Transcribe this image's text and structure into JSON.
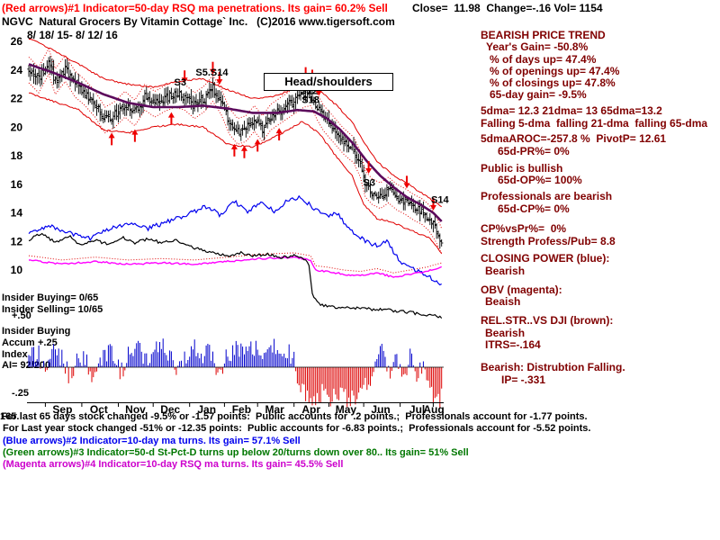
{
  "header": {
    "indicator1": "(Red arrows)#1 Indicator=50-day RSQ ma penetrations. Its gain= 60.2% Sell",
    "quote": "Close=  11.98  Change=-.16 Vol= 1154",
    "title": "NGVC  Natural Grocers By Vitamin Cottage` Inc.   (C)2016 www.tigersoft.com",
    "date_range": "8/ 18/ 15- 8/ 12/ 16"
  },
  "chart_annotations": {
    "head_shoulders": "Head/shoulders"
  },
  "right_panel": {
    "lines": [
      "BEARISH PRICE TREND",
      "Year's Gain= -50.8%",
      "% of days up= 47.4%",
      "% of openings up= 47.4%",
      "% of closings up= 47.8%",
      "65-day gain= -9.5%",
      "5dma= 12.3 21dma= 13 65dma=13.2",
      "Falling 5-dma  falling 21-dma  falling 65-dma",
      "5dmaAROC=-257.8 %  PivotP= 12.61",
      "65d-PR%= 0%",
      "Public is bullish",
      "65d-OP%= 100%",
      "Professionals are bearish",
      "65d-CP%= 0%",
      "CP%vsPr%=  0%",
      "Strength Profess/Pub= 8.8",
      "CLOSING POWER (blue):",
      "Bearish",
      "OBV (magenta):",
      "Beaish",
      "REL.STR..VS DJI (brown):",
      "Bearish",
      "ITRS=-.164",
      "Bearish: Distrubtion Falling.",
      "IP= -.331"
    ]
  },
  "insider": {
    "buying": "Insider Buying= 0/65",
    "selling": "Insider Selling= 10/65",
    "scale_plus_50": "+.50",
    "buying_label2": "Insider Buying",
    "accum_label": "Accum",
    "scale_plus_25": "+.25",
    "index_label": "Index",
    "ai_value": "AI= 92/200",
    "scale_minus_25": "-.25"
  },
  "footer": {
    "artifact": "165.",
    "line1": "For last 65 days stock changed -9.5% or -1.57 points:  Public accounts for  .2 points.;  Professionals account for -1.77 points.",
    "line2": "For Last year stock changed -51% or -12.35 points:  Public accounts for -6.83 points.;  Professionals account for -5.52 points.",
    "line3": "(Blue arrows)#2 Indicator=10-day ma turns. Its gain= 57.1% Sell",
    "line4": "(Green arrows)#3 Indicator=50-d St-Pct-D turns up below 20/turns down over 80.. Its gain= 51% Sell",
    "line5": "(Magenta arrows)#4 Indicator=10-day RSQ ma turns. Its gain= 45.5% Sell"
  },
  "chart_data": {
    "type": "candlestick",
    "title": "NGVC Natural Grocers By Vitamin Cottage Inc.",
    "period": "8/18/15 - 8/12/16",
    "quote": {
      "close": 11.98,
      "change": -0.16,
      "volume": 1154
    },
    "days": 250,
    "months": [
      "Sep",
      "Oct",
      "Nov",
      "Dec",
      "Jan",
      "Feb",
      "Mar",
      "Apr",
      "May",
      "Jun",
      "Jul",
      "Aug"
    ],
    "month_start_days": [
      10,
      32,
      54,
      75,
      97,
      118,
      138,
      160,
      181,
      202,
      224,
      244
    ],
    "price_ticks": [
      26,
      24,
      22,
      20,
      18,
      16,
      14,
      12,
      10
    ],
    "price_axis_range": [
      10,
      26
    ],
    "accum_ticks": [
      0.5,
      0.25,
      -0.25
    ],
    "accum_axis_range": [
      -0.5,
      0.5
    ],
    "price_anchors": [
      [
        0,
        24.0
      ],
      [
        6,
        23.3
      ],
      [
        12,
        24.6
      ],
      [
        16,
        23.2
      ],
      [
        22,
        24.1
      ],
      [
        28,
        23.0
      ],
      [
        34,
        22.4
      ],
      [
        40,
        21.6
      ],
      [
        46,
        20.5
      ],
      [
        52,
        20.9
      ],
      [
        58,
        21.6
      ],
      [
        64,
        21.0
      ],
      [
        70,
        22.1
      ],
      [
        76,
        21.6
      ],
      [
        82,
        22.0
      ],
      [
        88,
        22.3
      ],
      [
        94,
        22.1
      ],
      [
        100,
        21.5
      ],
      [
        106,
        22.0
      ],
      [
        111,
        22.7
      ],
      [
        116,
        21.8
      ],
      [
        121,
        20.4
      ],
      [
        126,
        19.7
      ],
      [
        131,
        19.9
      ],
      [
        136,
        20.6
      ],
      [
        141,
        19.9
      ],
      [
        146,
        20.7
      ],
      [
        151,
        21.1
      ],
      [
        156,
        21.5
      ],
      [
        161,
        21.9
      ],
      [
        166,
        22.3
      ],
      [
        170,
        22.4
      ],
      [
        174,
        21.4
      ],
      [
        178,
        20.6
      ],
      [
        184,
        19.8
      ],
      [
        190,
        19.0
      ],
      [
        196,
        18.4
      ],
      [
        200,
        17.4
      ],
      [
        203,
        16.0
      ],
      [
        207,
        15.5
      ],
      [
        212,
        15.2
      ],
      [
        217,
        15.6
      ],
      [
        222,
        15.1
      ],
      [
        227,
        14.8
      ],
      [
        232,
        14.4
      ],
      [
        237,
        14.1
      ],
      [
        241,
        13.7
      ],
      [
        245,
        13.0
      ],
      [
        248,
        12.3
      ],
      [
        249,
        12.0
      ]
    ],
    "ma65_anchors": [
      [
        0,
        24.4
      ],
      [
        15,
        23.8
      ],
      [
        30,
        23.1
      ],
      [
        45,
        22.3
      ],
      [
        60,
        21.7
      ],
      [
        75,
        21.4
      ],
      [
        90,
        21.4
      ],
      [
        105,
        21.5
      ],
      [
        120,
        21.3
      ],
      [
        135,
        21.0
      ],
      [
        150,
        21.0
      ],
      [
        162,
        21.2
      ],
      [
        172,
        21.1
      ],
      [
        180,
        20.6
      ],
      [
        188,
        19.8
      ],
      [
        196,
        18.8
      ],
      [
        204,
        17.6
      ],
      [
        212,
        16.6
      ],
      [
        220,
        15.8
      ],
      [
        228,
        15.1
      ],
      [
        236,
        14.6
      ],
      [
        244,
        14.0
      ],
      [
        249,
        13.4
      ]
    ],
    "band_upper_anchors": [
      [
        0,
        26.2
      ],
      [
        15,
        25.4
      ],
      [
        30,
        24.4
      ],
      [
        45,
        23.4
      ],
      [
        60,
        23.0
      ],
      [
        75,
        22.8
      ],
      [
        90,
        23.2
      ],
      [
        105,
        23.4
      ],
      [
        120,
        22.6
      ],
      [
        135,
        22.0
      ],
      [
        150,
        22.2
      ],
      [
        165,
        23.0
      ],
      [
        175,
        22.6
      ],
      [
        185,
        21.6
      ],
      [
        195,
        20.4
      ],
      [
        202,
        19.0
      ],
      [
        210,
        17.6
      ],
      [
        218,
        16.8
      ],
      [
        226,
        16.2
      ],
      [
        234,
        15.6
      ],
      [
        242,
        15.0
      ],
      [
        249,
        14.4
      ]
    ],
    "band_lower_anchors": [
      [
        0,
        22.4
      ],
      [
        15,
        21.8
      ],
      [
        30,
        21.2
      ],
      [
        45,
        19.8
      ],
      [
        60,
        19.6
      ],
      [
        75,
        20.0
      ],
      [
        90,
        20.2
      ],
      [
        105,
        20.0
      ],
      [
        120,
        18.8
      ],
      [
        135,
        18.6
      ],
      [
        150,
        19.4
      ],
      [
        165,
        20.4
      ],
      [
        175,
        19.6
      ],
      [
        185,
        18.0
      ],
      [
        195,
        16.6
      ],
      [
        202,
        14.6
      ],
      [
        210,
        13.6
      ],
      [
        218,
        13.4
      ],
      [
        226,
        13.0
      ],
      [
        234,
        12.6
      ],
      [
        242,
        12.2
      ],
      [
        249,
        11.2
      ]
    ],
    "closing_power_anchors": [
      [
        0,
        12.5
      ],
      [
        12,
        13.1
      ],
      [
        24,
        12.6
      ],
      [
        36,
        12.2
      ],
      [
        48,
        12.8
      ],
      [
        60,
        13.3
      ],
      [
        72,
        12.9
      ],
      [
        84,
        13.4
      ],
      [
        96,
        13.9
      ],
      [
        108,
        14.5
      ],
      [
        116,
        13.8
      ],
      [
        124,
        14.8
      ],
      [
        132,
        14.1
      ],
      [
        140,
        14.7
      ],
      [
        148,
        14.1
      ],
      [
        156,
        14.9
      ],
      [
        164,
        15.1
      ],
      [
        172,
        14.3
      ],
      [
        180,
        13.7
      ],
      [
        186,
        14.0
      ],
      [
        192,
        12.9
      ],
      [
        200,
        12.3
      ],
      [
        208,
        11.7
      ],
      [
        216,
        12.0
      ],
      [
        224,
        10.6
      ],
      [
        232,
        10.1
      ],
      [
        240,
        9.6
      ],
      [
        249,
        9.0
      ]
    ],
    "obv_anchors": [
      [
        0,
        10.7
      ],
      [
        20,
        10.4
      ],
      [
        40,
        10.6
      ],
      [
        60,
        10.4
      ],
      [
        80,
        10.5
      ],
      [
        100,
        10.4
      ],
      [
        120,
        10.6
      ],
      [
        140,
        10.8
      ],
      [
        160,
        10.9
      ],
      [
        170,
        10.7
      ],
      [
        173,
        10.0
      ],
      [
        180,
        9.9
      ],
      [
        190,
        9.7
      ],
      [
        200,
        9.6
      ],
      [
        210,
        9.8
      ],
      [
        220,
        9.5
      ],
      [
        230,
        9.7
      ],
      [
        240,
        9.9
      ],
      [
        249,
        10.2
      ]
    ],
    "rel_str_anchors": [
      [
        0,
        12.1
      ],
      [
        8,
        12.6
      ],
      [
        16,
        11.9
      ],
      [
        24,
        12.4
      ],
      [
        32,
        11.7
      ],
      [
        40,
        12.1
      ],
      [
        48,
        11.8
      ],
      [
        56,
        12.3
      ],
      [
        64,
        11.9
      ],
      [
        72,
        12.2
      ],
      [
        80,
        11.9
      ],
      [
        88,
        12.1
      ],
      [
        96,
        11.7
      ],
      [
        104,
        11.4
      ],
      [
        112,
        11.2
      ],
      [
        120,
        11.0
      ],
      [
        128,
        11.2
      ],
      [
        136,
        11.0
      ],
      [
        144,
        11.1
      ],
      [
        152,
        10.9
      ],
      [
        160,
        11.0
      ],
      [
        166,
        10.8
      ],
      [
        169,
        10.4
      ],
      [
        171,
        8.3
      ],
      [
        176,
        7.6
      ],
      [
        184,
        7.4
      ],
      [
        200,
        7.3
      ],
      [
        216,
        7.2
      ],
      [
        232,
        7.0
      ],
      [
        249,
        6.7
      ]
    ],
    "accum_anchors": [
      [
        0,
        0.06
      ],
      [
        5,
        0.16
      ],
      [
        10,
        -0.08
      ],
      [
        15,
        0.18
      ],
      [
        20,
        0.1
      ],
      [
        25,
        -0.1
      ],
      [
        30,
        0.14
      ],
      [
        35,
        0.06
      ],
      [
        40,
        -0.12
      ],
      [
        45,
        0.1
      ],
      [
        50,
        0.16
      ],
      [
        55,
        -0.06
      ],
      [
        60,
        0.12
      ],
      [
        65,
        0.18
      ],
      [
        70,
        0.08
      ],
      [
        75,
        0.14
      ],
      [
        80,
        0.2
      ],
      [
        85,
        0.1
      ],
      [
        90,
        -0.08
      ],
      [
        95,
        0.12
      ],
      [
        100,
        0.18
      ],
      [
        105,
        0.08
      ],
      [
        110,
        0.16
      ],
      [
        115,
        -0.1
      ],
      [
        120,
        0.12
      ],
      [
        125,
        0.2
      ],
      [
        130,
        0.14
      ],
      [
        135,
        0.22
      ],
      [
        140,
        0.16
      ],
      [
        145,
        0.24
      ],
      [
        150,
        0.14
      ],
      [
        155,
        0.18
      ],
      [
        160,
        0.05
      ],
      [
        163,
        -0.18
      ],
      [
        167,
        -0.28
      ],
      [
        172,
        -0.3
      ],
      [
        177,
        -0.26
      ],
      [
        182,
        -0.3
      ],
      [
        187,
        -0.28
      ],
      [
        192,
        -0.3
      ],
      [
        197,
        -0.26
      ],
      [
        202,
        -0.22
      ],
      [
        206,
        -0.12
      ],
      [
        210,
        0.1
      ],
      [
        214,
        0.16
      ],
      [
        218,
        -0.1
      ],
      [
        222,
        0.12
      ],
      [
        226,
        -0.14
      ],
      [
        230,
        0.1
      ],
      [
        234,
        -0.16
      ],
      [
        238,
        0.08
      ],
      [
        242,
        -0.22
      ],
      [
        246,
        -0.28
      ],
      [
        249,
        -0.3
      ]
    ],
    "buy_arrow_days": [
      50,
      64,
      86,
      124,
      130,
      138,
      151
    ],
    "sell_arrow_days": [
      94,
      111,
      115,
      167,
      171,
      175,
      205,
      228,
      244
    ],
    "signal_labels": [
      {
        "text": "S3",
        "day": 92,
        "price": 22.9
      },
      {
        "text": "S5.S14",
        "day": 105,
        "price": 23.6
      },
      {
        "text": "S14",
        "day": 167,
        "price": 22.9
      },
      {
        "text": "S12",
        "day": 168,
        "price": 22.3
      },
      {
        "text": "S18",
        "day": 169,
        "price": 21.7
      },
      {
        "text": "S3",
        "day": 206,
        "price": 15.9
      },
      {
        "text": "S14",
        "day": 247,
        "price": 14.7
      }
    ],
    "colors": {
      "price": "#000000",
      "ma65": "#5c0a5c",
      "band": "#e00000",
      "closing_power": "#0000ee",
      "obv": "#ff00ff",
      "rel_str": "#000000",
      "accum_pos": "#0000cc",
      "accum_neg": "#dd0000",
      "arrow": "#ee0000"
    }
  }
}
